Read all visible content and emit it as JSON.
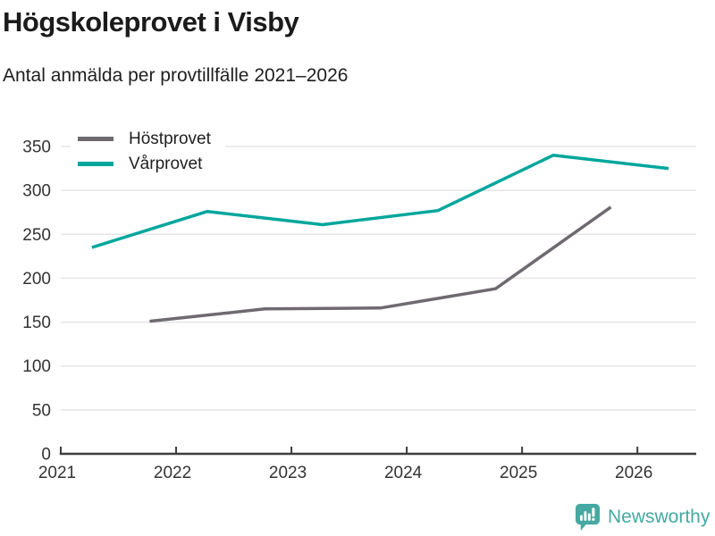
{
  "chart_data": {
    "type": "line",
    "title": "Högskoleprovet i Visby",
    "subtitle": "Antal anmälda per provtillfälle 2021–2026",
    "x_ticks": [
      2021,
      2022,
      2023,
      2024,
      2025,
      2026
    ],
    "y_ticks": [
      0,
      50,
      100,
      150,
      200,
      250,
      300,
      350
    ],
    "xlim": [
      2021,
      2026.51
    ],
    "ylim": [
      0,
      350
    ],
    "grid": "horizontal",
    "legend_position": "top-left",
    "series": [
      {
        "name": "Höstprovet",
        "color": "#6e6a70",
        "x": [
          2021.77,
          2022.77,
          2023.77,
          2024.77,
          2025.77
        ],
        "values": [
          151,
          165,
          166,
          188,
          281
        ]
      },
      {
        "name": "Vårprovet",
        "color": "#00a69c",
        "x": [
          2021.27,
          2022.27,
          2023.27,
          2024.27,
          2025.27,
          2026.27
        ],
        "values": [
          235,
          276,
          261,
          277,
          340,
          325
        ]
      }
    ],
    "colors": {
      "axis": "#3d3d3d",
      "grid": "#e5e5e5",
      "tick_text": "#333333",
      "title_text": "#1b1b1b"
    }
  },
  "branding": {
    "logo_text": "Newsworthy",
    "logo_color": "#45a9a2",
    "icon": "bar-chart-speech-bubble-icon"
  }
}
